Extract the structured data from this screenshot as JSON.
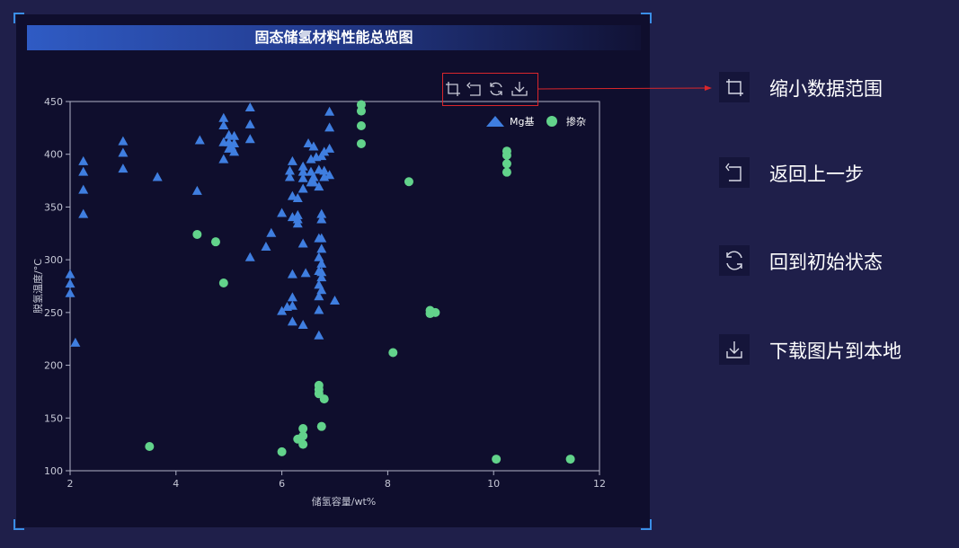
{
  "chart_title": "固态储氢材料性能总览图",
  "toolbox": {
    "icons": [
      "zoom-rect-icon",
      "undo-icon",
      "refresh-icon",
      "download-icon"
    ]
  },
  "help_items": [
    {
      "icon": "zoom-rect-icon",
      "label": "缩小数据范围"
    },
    {
      "icon": "undo-icon",
      "label": "返回上一步"
    },
    {
      "icon": "refresh-icon",
      "label": "回到初始状态"
    },
    {
      "icon": "download-icon",
      "label": "下载图片到本地"
    }
  ],
  "colors": {
    "mg_series": "#3f7ee0",
    "doped_series": "#62d38b",
    "axis": "#b0b3c8",
    "toolbox_highlight": "#d9262b",
    "arrow": "#d9262b"
  },
  "chart_data": {
    "type": "scatter",
    "title": "固态储氢材料性能总览图",
    "xlabel": "储氢容量/wt%",
    "ylabel": "脱氢温度/°C",
    "xlim": [
      2,
      12
    ],
    "ylim": [
      100,
      450
    ],
    "xticks": [
      2,
      4,
      6,
      8,
      10,
      12
    ],
    "yticks": [
      100,
      150,
      200,
      250,
      300,
      350,
      400,
      450
    ],
    "legend_position": "top-right",
    "series": [
      {
        "name": "Mg基",
        "marker": "triangle",
        "points": [
          [
            2.0,
            286
          ],
          [
            2.0,
            277
          ],
          [
            2.0,
            268
          ],
          [
            2.1,
            221
          ],
          [
            2.25,
            393
          ],
          [
            2.25,
            383
          ],
          [
            2.25,
            366
          ],
          [
            2.25,
            343
          ],
          [
            3.0,
            412
          ],
          [
            3.0,
            401
          ],
          [
            3.0,
            386
          ],
          [
            3.65,
            378
          ],
          [
            4.4,
            365
          ],
          [
            4.45,
            413
          ],
          [
            4.9,
            434
          ],
          [
            4.9,
            427
          ],
          [
            4.9,
            411
          ],
          [
            4.9,
            395
          ],
          [
            5.0,
            418
          ],
          [
            5.0,
            411
          ],
          [
            5.0,
            405
          ],
          [
            5.05,
            407
          ],
          [
            5.1,
            417
          ],
          [
            5.1,
            410
          ],
          [
            5.1,
            402
          ],
          [
            5.4,
            444
          ],
          [
            5.4,
            428
          ],
          [
            5.4,
            414
          ],
          [
            5.4,
            302
          ],
          [
            5.7,
            312
          ],
          [
            5.8,
            325
          ],
          [
            6.0,
            344
          ],
          [
            6.0,
            251
          ],
          [
            6.1,
            255
          ],
          [
            6.15,
            384
          ],
          [
            6.15,
            378
          ],
          [
            6.2,
            393
          ],
          [
            6.2,
            360
          ],
          [
            6.2,
            340
          ],
          [
            6.2,
            286
          ],
          [
            6.2,
            264
          ],
          [
            6.2,
            256
          ],
          [
            6.2,
            241
          ],
          [
            6.3,
            358
          ],
          [
            6.3,
            342
          ],
          [
            6.3,
            338
          ],
          [
            6.3,
            334
          ],
          [
            6.4,
            388
          ],
          [
            6.4,
            383
          ],
          [
            6.4,
            377
          ],
          [
            6.4,
            367
          ],
          [
            6.4,
            315
          ],
          [
            6.4,
            238
          ],
          [
            6.45,
            287
          ],
          [
            6.5,
            410
          ],
          [
            6.55,
            395
          ],
          [
            6.55,
            383
          ],
          [
            6.55,
            373
          ],
          [
            6.6,
            407
          ],
          [
            6.6,
            378
          ],
          [
            6.6,
            373
          ],
          [
            6.65,
            397
          ],
          [
            6.7,
            385
          ],
          [
            6.7,
            369
          ],
          [
            6.7,
            320
          ],
          [
            6.7,
            302
          ],
          [
            6.7,
            289
          ],
          [
            6.7,
            276
          ],
          [
            6.7,
            265
          ],
          [
            6.7,
            252
          ],
          [
            6.7,
            228
          ],
          [
            6.75,
            398
          ],
          [
            6.75,
            343
          ],
          [
            6.75,
            338
          ],
          [
            6.75,
            320
          ],
          [
            6.75,
            310
          ],
          [
            6.75,
            296
          ],
          [
            6.75,
            288
          ],
          [
            6.75,
            283
          ],
          [
            6.75,
            271
          ],
          [
            6.8,
            402
          ],
          [
            6.8,
            384
          ],
          [
            6.8,
            378
          ],
          [
            6.9,
            440
          ],
          [
            6.9,
            425
          ],
          [
            6.9,
            405
          ],
          [
            6.9,
            380
          ],
          [
            7.0,
            261
          ]
        ]
      },
      {
        "name": "掺杂",
        "marker": "circle",
        "points": [
          [
            3.5,
            123
          ],
          [
            4.4,
            324
          ],
          [
            4.75,
            317
          ],
          [
            4.9,
            278
          ],
          [
            6.0,
            118
          ],
          [
            6.3,
            130
          ],
          [
            6.4,
            140
          ],
          [
            6.4,
            133
          ],
          [
            6.4,
            125
          ],
          [
            6.7,
            181
          ],
          [
            6.7,
            177
          ],
          [
            6.7,
            173
          ],
          [
            6.75,
            142
          ],
          [
            6.8,
            168
          ],
          [
            7.5,
            447
          ],
          [
            7.5,
            441
          ],
          [
            7.5,
            427
          ],
          [
            7.5,
            410
          ],
          [
            8.1,
            212
          ],
          [
            8.4,
            374
          ],
          [
            8.8,
            252
          ],
          [
            8.8,
            249
          ],
          [
            8.9,
            250
          ],
          [
            10.05,
            111
          ],
          [
            10.25,
            403
          ],
          [
            10.25,
            399
          ],
          [
            10.25,
            391
          ],
          [
            10.25,
            383
          ],
          [
            11.45,
            111
          ]
        ]
      }
    ]
  }
}
